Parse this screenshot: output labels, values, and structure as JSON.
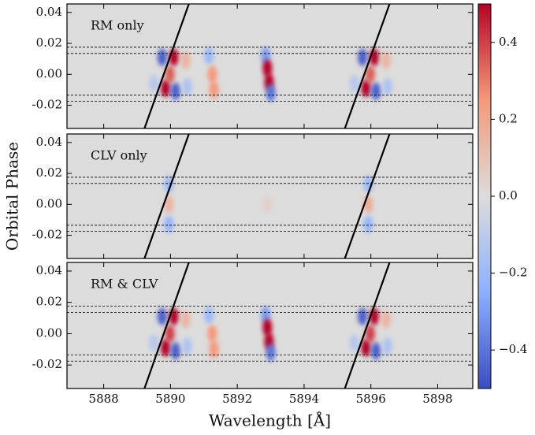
{
  "chart_data": [
    {
      "type": "heatmap",
      "label": "RM only",
      "xlim": [
        5886.9,
        5899.05
      ],
      "ylim": [
        -0.035,
        0.0455
      ],
      "yticks": [
        -0.02,
        {
          "value": 0,
          "label": "0.00"
        },
        0.02,
        0.04
      ],
      "hlines": [
        0.0175,
        0.0135,
        -0.0135,
        -0.0175
      ],
      "tracks": [
        {
          "x": [
            5889.22,
            5890.55
          ],
          "y": [
            -0.035,
            0.0455
          ]
        },
        {
          "x": [
            5895.22,
            5896.56
          ],
          "y": [
            -0.035,
            0.0455
          ]
        }
      ],
      "blobs": [
        {
          "x": 5889.75,
          "y": 0.011,
          "v": -0.45
        },
        {
          "x": 5890.1,
          "y": 0.011,
          "v": 0.5
        },
        {
          "x": 5890.45,
          "y": 0.009,
          "v": 0.15
        },
        {
          "x": 5889.85,
          "y": -0.009,
          "v": 0.5
        },
        {
          "x": 5890.15,
          "y": -0.011,
          "v": -0.45
        },
        {
          "x": 5890.5,
          "y": -0.008,
          "v": -0.15
        },
        {
          "x": 5889.5,
          "y": -0.006,
          "v": -0.12
        },
        {
          "x": 5889.98,
          "y": 0.0,
          "v": 0.35
        },
        {
          "x": 5895.75,
          "y": 0.011,
          "v": -0.45
        },
        {
          "x": 5896.1,
          "y": 0.011,
          "v": 0.5
        },
        {
          "x": 5896.45,
          "y": 0.009,
          "v": 0.15
        },
        {
          "x": 5895.85,
          "y": -0.009,
          "v": 0.5
        },
        {
          "x": 5896.15,
          "y": -0.011,
          "v": -0.45
        },
        {
          "x": 5896.5,
          "y": -0.008,
          "v": -0.15
        },
        {
          "x": 5895.5,
          "y": -0.006,
          "v": -0.12
        },
        {
          "x": 5895.98,
          "y": 0.0,
          "v": 0.35
        },
        {
          "x": 5892.85,
          "y": 0.012,
          "v": -0.3
        },
        {
          "x": 5892.9,
          "y": 0.004,
          "v": 0.5
        },
        {
          "x": 5892.95,
          "y": -0.005,
          "v": 0.5
        },
        {
          "x": 5893.0,
          "y": -0.012,
          "v": -0.4
        },
        {
          "x": 5891.15,
          "y": 0.012,
          "v": -0.2
        },
        {
          "x": 5891.25,
          "y": 0.0,
          "v": 0.25
        },
        {
          "x": 5891.3,
          "y": -0.01,
          "v": 0.25
        }
      ]
    },
    {
      "type": "heatmap",
      "label": "CLV only",
      "ylabel": "Orbital Phase",
      "xlim": [
        5886.9,
        5899.05
      ],
      "ylim": [
        -0.035,
        0.0455
      ],
      "yticks": [
        -0.02,
        {
          "value": 0,
          "label": "0.00"
        },
        0.02,
        0.04
      ],
      "hlines": [
        0.0175,
        0.0135,
        -0.0135,
        -0.0175
      ],
      "tracks": [
        {
          "x": [
            5889.22,
            5890.55
          ],
          "y": [
            -0.035,
            0.0455
          ]
        },
        {
          "x": [
            5895.22,
            5896.56
          ],
          "y": [
            -0.035,
            0.0455
          ]
        }
      ],
      "blobs": [
        {
          "x": 5889.95,
          "y": 0.013,
          "v": -0.2
        },
        {
          "x": 5889.95,
          "y": 0.0,
          "v": 0.15
        },
        {
          "x": 5889.95,
          "y": -0.013,
          "v": -0.22
        },
        {
          "x": 5895.92,
          "y": 0.013,
          "v": -0.2
        },
        {
          "x": 5895.92,
          "y": 0.0,
          "v": 0.18
        },
        {
          "x": 5895.92,
          "y": -0.013,
          "v": -0.22
        },
        {
          "x": 5892.9,
          "y": 0.0,
          "v": 0.05
        }
      ]
    },
    {
      "type": "heatmap",
      "label": "RM & CLV",
      "xlabel": "Wavelength [Å]",
      "xlim": [
        5886.9,
        5899.05
      ],
      "ylim": [
        -0.035,
        0.0455
      ],
      "xticks": [
        5888,
        5890,
        5892,
        5894,
        5896,
        5898
      ],
      "yticks": [
        -0.02,
        {
          "value": 0,
          "label": "0.00"
        },
        0.02,
        0.04
      ],
      "hlines": [
        0.0175,
        0.0135,
        -0.0135,
        -0.0175
      ],
      "tracks": [
        {
          "x": [
            5889.22,
            5890.55
          ],
          "y": [
            -0.035,
            0.0455
          ]
        },
        {
          "x": [
            5895.22,
            5896.56
          ],
          "y": [
            -0.035,
            0.0455
          ]
        }
      ],
      "blobs": [
        {
          "x": 5889.75,
          "y": 0.011,
          "v": -0.45
        },
        {
          "x": 5890.1,
          "y": 0.011,
          "v": 0.5
        },
        {
          "x": 5890.45,
          "y": 0.009,
          "v": 0.15
        },
        {
          "x": 5889.85,
          "y": -0.009,
          "v": 0.5
        },
        {
          "x": 5890.15,
          "y": -0.011,
          "v": -0.45
        },
        {
          "x": 5890.5,
          "y": -0.008,
          "v": -0.15
        },
        {
          "x": 5889.5,
          "y": -0.006,
          "v": -0.12
        },
        {
          "x": 5889.98,
          "y": 0.0,
          "v": 0.4
        },
        {
          "x": 5895.75,
          "y": 0.011,
          "v": -0.45
        },
        {
          "x": 5896.1,
          "y": 0.011,
          "v": 0.5
        },
        {
          "x": 5896.45,
          "y": 0.009,
          "v": 0.15
        },
        {
          "x": 5895.85,
          "y": -0.009,
          "v": 0.5
        },
        {
          "x": 5896.15,
          "y": -0.011,
          "v": -0.45
        },
        {
          "x": 5896.5,
          "y": -0.008,
          "v": -0.15
        },
        {
          "x": 5895.5,
          "y": -0.006,
          "v": -0.12
        },
        {
          "x": 5895.98,
          "y": 0.0,
          "v": 0.4
        },
        {
          "x": 5892.85,
          "y": 0.012,
          "v": -0.3
        },
        {
          "x": 5892.9,
          "y": 0.004,
          "v": 0.5
        },
        {
          "x": 5892.95,
          "y": -0.005,
          "v": 0.5
        },
        {
          "x": 5893.0,
          "y": -0.012,
          "v": -0.4
        },
        {
          "x": 5891.15,
          "y": 0.012,
          "v": -0.2
        },
        {
          "x": 5891.25,
          "y": 0.0,
          "v": 0.25
        },
        {
          "x": 5891.3,
          "y": -0.01,
          "v": 0.25
        }
      ]
    },
    {
      "type": "colorbar",
      "lim": [
        -0.5,
        0.5
      ],
      "colors": [
        "#3b4cc0",
        "#8db0fe",
        "#dddcdc",
        "#f49a7b",
        "#b40426"
      ],
      "ticks": [
        {
          "value": -0.4,
          "label": "−0.4"
        },
        {
          "value": -0.2,
          "label": "−0.2"
        },
        {
          "value": 0,
          "label": "0.0"
        },
        0.2,
        0.4
      ]
    }
  ]
}
